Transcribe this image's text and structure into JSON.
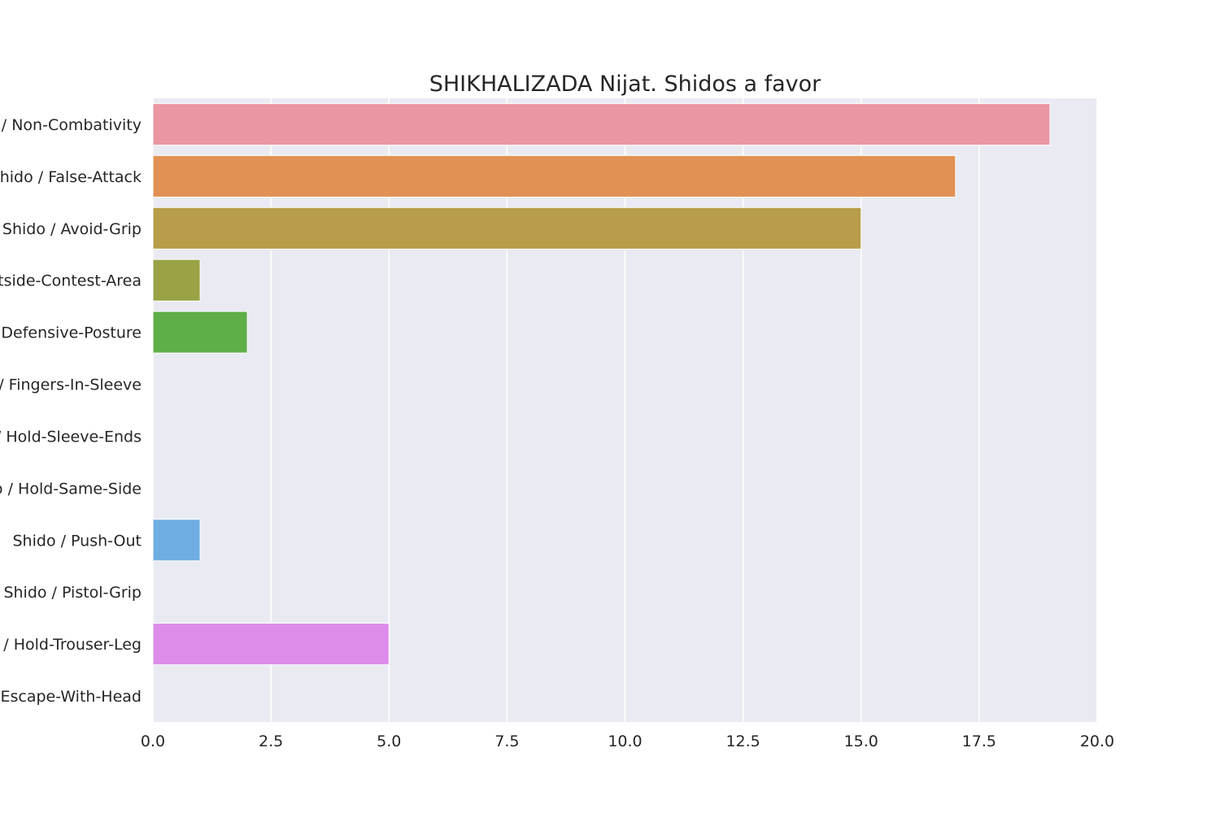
{
  "chart_data": {
    "type": "bar",
    "orientation": "horizontal",
    "title": "SHIKHALIZADA Nijat. Shidos a favor",
    "xlabel": "",
    "ylabel": "",
    "categories": [
      "Shido / Non-Combativity",
      "Shido / False-Attack",
      "Shido / Avoid-Grip",
      "Shido / Outside-Contest-Area",
      "Shido / Defensive-Posture",
      "Shido / Fingers-In-Sleeve",
      "Shido / Hold-Sleeve-Ends",
      "Shido / Hold-Same-Side",
      "Shido / Push-Out",
      "Shido / Pistol-Grip",
      "Shido / Hold-Trouser-Leg",
      "Shido / Escape-With-Head"
    ],
    "values": [
      19,
      17,
      15,
      1,
      2,
      0,
      0,
      0,
      1,
      0,
      5,
      0
    ],
    "colors": [
      "#ea96a3",
      "#e19153",
      "#b89d4a",
      "#9ba245",
      "#5fae47",
      "#4fb38a",
      "#52b0ad",
      "#55adc2",
      "#6eaee2",
      "#b0a4e9",
      "#de8ce9",
      "#e892c6"
    ],
    "xlim": [
      0,
      20
    ],
    "xticks": [
      0,
      2.5,
      5,
      7.5,
      10,
      12.5,
      15,
      17.5,
      20
    ],
    "xtick_labels": [
      "0.0",
      "2.5",
      "5.0",
      "7.5",
      "10.0",
      "12.5",
      "15.0",
      "17.5",
      "20.0"
    ],
    "grid": true,
    "background": "#eaeaf2",
    "grid_color": "#ffffff"
  }
}
